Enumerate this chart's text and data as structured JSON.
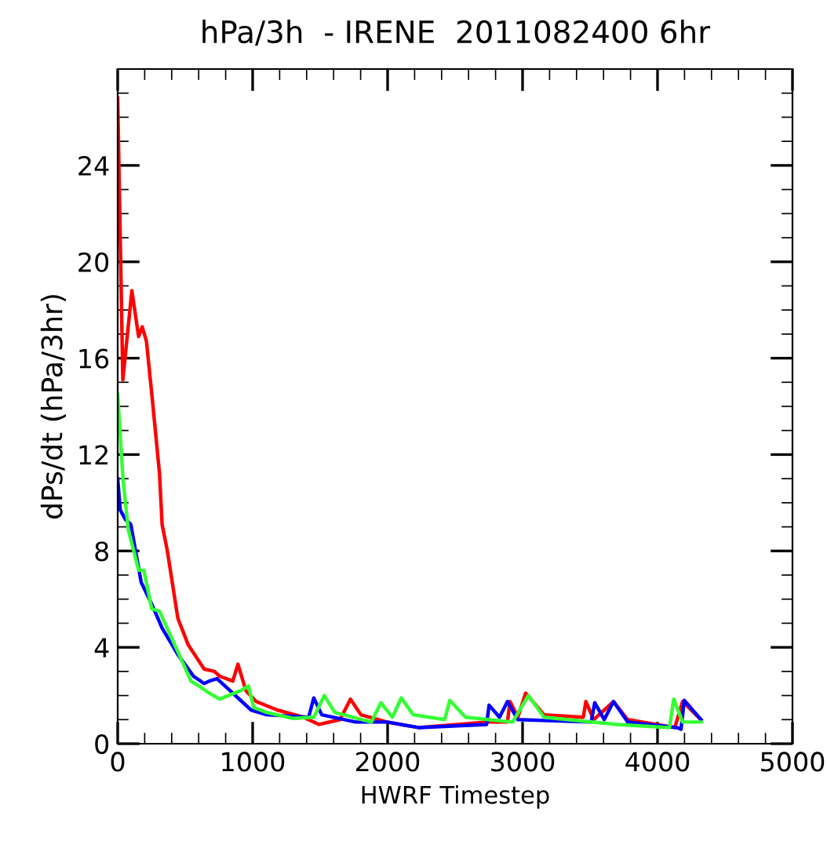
{
  "chart_data": {
    "type": "line",
    "title": "hPa/3h  - IRENE  2011082400 6hr",
    "xlabel": "HWRF Timestep",
    "ylabel": "dPs/dt (hPa/3hr)",
    "xlim": [
      0,
      5000
    ],
    "ylim": [
      0,
      28
    ],
    "xticks": [
      0,
      1000,
      2000,
      3000,
      4000,
      5000
    ],
    "yticks": [
      0,
      4,
      8,
      12,
      16,
      20,
      24
    ],
    "grid": false,
    "marker": "none",
    "line_style": "solid",
    "series": [
      {
        "color": "#ff0000",
        "x": [
          0,
          38,
          105,
          155,
          182,
          213,
          260,
          310,
          329,
          368,
          446,
          523,
          640,
          717,
          756,
          853,
          891,
          950,
          1027,
          1182,
          1376,
          1492,
          1647,
          1725,
          1802,
          1996,
          2229,
          2733,
          2888,
          2907,
          2965,
          3023,
          3159,
          3450,
          3469,
          3527,
          3674,
          3779,
          4128,
          4186,
          4322
        ],
        "values": [
          26.8,
          15.1,
          18.8,
          16.9,
          17.3,
          16.7,
          14.1,
          11.2,
          9.1,
          8.0,
          5.2,
          4.1,
          3.1,
          3.0,
          2.8,
          2.6,
          3.3,
          2.2,
          1.75,
          1.4,
          1.1,
          0.8,
          1.0,
          1.85,
          1.2,
          0.9,
          0.67,
          0.9,
          0.9,
          1.75,
          1.1,
          2.1,
          1.2,
          1.1,
          1.75,
          1.0,
          1.75,
          1.0,
          0.67,
          1.75,
          1.0
        ]
      },
      {
        "color": "#0000ff",
        "x": [
          0,
          19,
          58,
          97,
          174,
          252,
          329,
          446,
          562,
          640,
          678,
          736,
          833,
          988,
          1105,
          1415,
          1453,
          1512,
          1764,
          1996,
          2229,
          2733,
          2752,
          2829,
          2888,
          2965,
          3508,
          3535,
          3605,
          3674,
          3779,
          4147,
          4174,
          4198,
          4322
        ],
        "values": [
          11.0,
          9.7,
          9.3,
          9.1,
          6.7,
          5.8,
          4.8,
          3.7,
          2.8,
          2.5,
          2.6,
          2.7,
          2.2,
          1.4,
          1.2,
          1.1,
          1.9,
          1.2,
          0.9,
          0.9,
          0.67,
          0.8,
          1.6,
          1.1,
          1.75,
          1.0,
          0.9,
          1.7,
          1.0,
          1.75,
          0.9,
          0.67,
          0.6,
          1.8,
          1.0
        ]
      },
      {
        "color": "#33ff33",
        "x": [
          0,
          39,
          78,
          155,
          194,
          252,
          310,
          407,
          543,
          601,
          678,
          756,
          911,
          969,
          1008,
          1105,
          1298,
          1453,
          1531,
          1609,
          1880,
          1950,
          2035,
          2101,
          2190,
          2422,
          2461,
          2578,
          2926,
          3043,
          3159,
          3702,
          4089,
          4120,
          4186,
          4322
        ],
        "values": [
          14.5,
          11.0,
          8.9,
          7.2,
          7.2,
          5.6,
          5.5,
          4.3,
          2.6,
          2.4,
          2.1,
          1.85,
          2.2,
          2.4,
          1.5,
          1.3,
          1.05,
          1.1,
          2.0,
          1.3,
          0.9,
          1.7,
          1.1,
          1.9,
          1.2,
          1.0,
          1.8,
          1.1,
          0.9,
          2.0,
          1.1,
          0.8,
          0.67,
          1.85,
          0.9,
          0.9
        ]
      }
    ]
  }
}
